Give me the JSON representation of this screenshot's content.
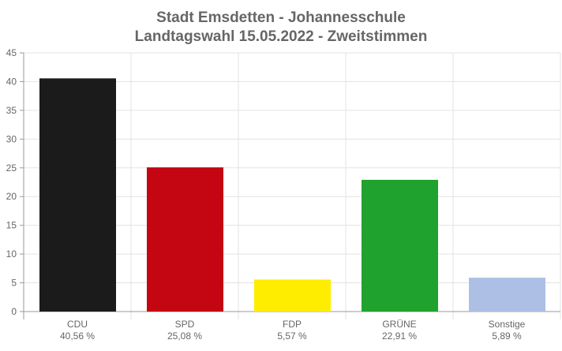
{
  "chart_data": {
    "type": "bar",
    "title": [
      "Stadt Emsdetten - Johannesschule",
      "Landtagswahl 15.05.2022  - Zweitstimmen"
    ],
    "categories": [
      "CDU",
      "SPD",
      "FDP",
      "GRÜNE",
      "Sonstige"
    ],
    "category_sublabels": [
      "40,56 %",
      "25,08 %",
      "5,57 %",
      "22,91 %",
      "5,89 %"
    ],
    "values": [
      40.56,
      25.08,
      5.57,
      22.91,
      5.89
    ],
    "colors": [
      "#1b1b1b",
      "#c40512",
      "#ffed00",
      "#1fa22e",
      "#aebfe5"
    ],
    "ylim": [
      0,
      45
    ],
    "yticks": [
      "0",
      "5",
      "10",
      "15",
      "20",
      "25",
      "30",
      "35",
      "40",
      "45"
    ],
    "grid": true,
    "legend": "none"
  }
}
